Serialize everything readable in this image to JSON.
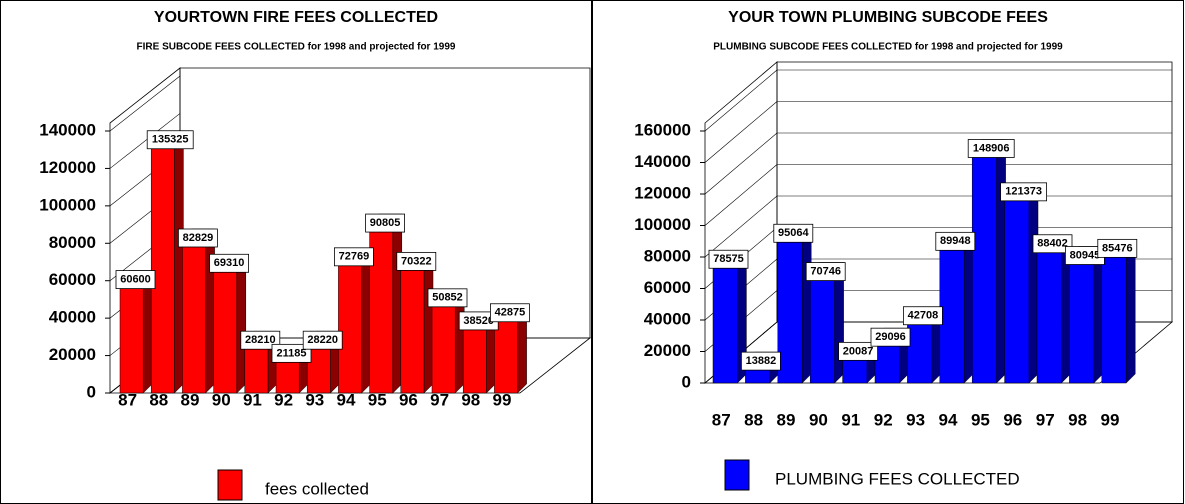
{
  "chart_data": [
    {
      "type": "bar3d",
      "title": "YOURTOWN FIRE FEES COLLECTED",
      "subtitle": "FIRE SUBCODE FEES COLLECTED for 1998 and projected for 1999",
      "categories": [
        "87",
        "88",
        "89",
        "90",
        "91",
        "92",
        "93",
        "94",
        "95",
        "96",
        "97",
        "98",
        "99"
      ],
      "series": [
        {
          "name": "fees collected",
          "color": "#ff0000",
          "side_color": "#8b0000",
          "values": [
            60600,
            135325,
            82829,
            69310,
            28210,
            21185,
            28220,
            72769,
            90805,
            70322,
            50852,
            38520,
            42875
          ]
        }
      ],
      "ylim": [
        0,
        140000
      ],
      "yticks": [
        0,
        20000,
        40000,
        60000,
        80000,
        100000,
        120000,
        140000
      ],
      "grid": false
    },
    {
      "type": "bar3d",
      "title": "YOUR TOWN PLUMBING SUBCODE FEES",
      "subtitle": "PLUMBING SUBCODE FEES COLLECTED for 1998 and projected for 1999",
      "categories": [
        "87",
        "88",
        "89",
        "90",
        "91",
        "92",
        "93",
        "94",
        "95",
        "96",
        "97",
        "98",
        "99"
      ],
      "series": [
        {
          "name": "PLUMBING FEES COLLECTED",
          "color": "#0000ff",
          "side_color": "#000080",
          "values": [
            78575,
            13882,
            95064,
            70746,
            20087,
            29096,
            42708,
            89948,
            148906,
            121373,
            88402,
            80945,
            85476
          ]
        }
      ],
      "ylim": [
        0,
        160000
      ],
      "yticks": [
        0,
        20000,
        40000,
        60000,
        80000,
        100000,
        120000,
        140000,
        160000
      ],
      "grid": true
    }
  ]
}
